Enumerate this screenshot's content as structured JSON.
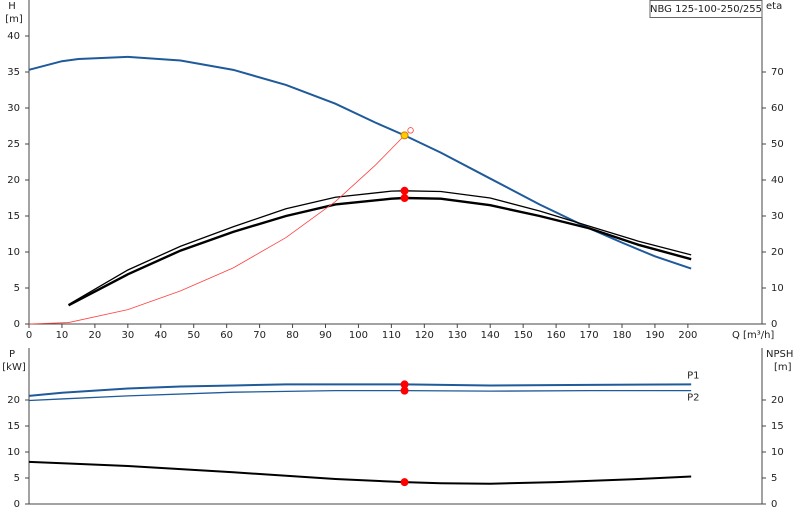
{
  "chart_data": [
    {
      "type": "line",
      "title": "NBG 125-100-250/255",
      "ylabel": "H",
      "yunit": "[m]",
      "y2label": "eta",
      "xlabel": "Q [m³/h]",
      "xlim": [
        0,
        222.5
      ],
      "xticks": [
        0,
        10,
        20,
        30,
        40,
        50,
        60,
        70,
        80,
        90,
        100,
        110,
        120,
        130,
        140,
        150,
        160,
        170,
        180,
        190,
        200
      ],
      "ylim": [
        0,
        45
      ],
      "yticks": [
        0,
        5,
        10,
        15,
        20,
        25,
        30,
        35,
        40
      ],
      "y2lim": [
        0,
        90
      ],
      "y2ticks": [
        0,
        10,
        20,
        30,
        40,
        50,
        60,
        70
      ],
      "series": [
        {
          "color": "#1f5a9a",
          "width": 2,
          "x": [
            0,
            10,
            15,
            30,
            46,
            62,
            78,
            93,
            105,
            114,
            125,
            140,
            155,
            160,
            170,
            180,
            190,
            201
          ],
          "values": [
            35.3,
            36.5,
            36.8,
            37.1,
            36.6,
            35.3,
            33.2,
            30.6,
            28,
            26.2,
            23.8,
            20.2,
            16.6,
            15.5,
            13.3,
            11.3,
            9.4,
            7.7
          ]
        },
        {
          "color": "#000000",
          "width": 1.3,
          "axis": "y2",
          "x": [
            12,
            30,
            46,
            62,
            78,
            93,
            110,
            114,
            125,
            140,
            155,
            170,
            185,
            201
          ],
          "values": [
            5.4,
            15,
            21.6,
            27,
            32,
            35.2,
            36.9,
            37,
            36.8,
            35,
            31.4,
            27.2,
            23,
            19.2
          ]
        },
        {
          "color": "#000000",
          "width": 2.4,
          "axis": "y2",
          "x": [
            12,
            30,
            46,
            62,
            78,
            93,
            110,
            114,
            125,
            140,
            155,
            170,
            185,
            201
          ],
          "values": [
            5.2,
            13.8,
            20.4,
            25.6,
            30,
            33.2,
            34.8,
            35,
            34.8,
            33,
            30,
            26.6,
            22,
            18
          ]
        },
        {
          "color": "#ff4040",
          "width": 0.8,
          "x": [
            0,
            12,
            30,
            46,
            62,
            78,
            93,
            105,
            114
          ],
          "values": [
            0,
            0.2,
            2,
            4.6,
            7.8,
            12,
            17,
            22,
            26.2
          ]
        }
      ],
      "markers": [
        {
          "x": 114,
          "y": 26.2,
          "color": "#ffcc00"
        },
        {
          "x": 114,
          "y": 37,
          "color": "#ff0000",
          "axis": "y2"
        },
        {
          "x": 114,
          "y": 35,
          "color": "#ff0000",
          "axis": "y2"
        }
      ]
    },
    {
      "type": "line",
      "ylabel": "P",
      "yunit": "[kW]",
      "y2label": "NPSH",
      "y2unit": "[m]",
      "xlim": [
        0,
        222.5
      ],
      "ylim": [
        0,
        30
      ],
      "yticks": [
        0,
        5,
        10,
        15,
        20
      ],
      "y2lim": [
        0,
        30
      ],
      "y2ticks": [
        0,
        5,
        10,
        15,
        20
      ],
      "series": [
        {
          "name": "P1",
          "color": "#1f5a9a",
          "width": 2,
          "x": [
            0,
            10,
            30,
            46,
            62,
            78,
            114,
            140,
            170,
            201
          ],
          "values": [
            20.8,
            21.4,
            22.2,
            22.6,
            22.8,
            23,
            23,
            22.8,
            22.9,
            23
          ]
        },
        {
          "name": "P2",
          "color": "#1f5a9a",
          "width": 1.3,
          "x": [
            0,
            10,
            30,
            62,
            93,
            114,
            140,
            170,
            201
          ],
          "values": [
            19.9,
            20.2,
            20.8,
            21.5,
            21.8,
            21.8,
            21.7,
            21.8,
            21.8
          ]
        },
        {
          "color": "#000000",
          "width": 2,
          "axis": "y2",
          "x": [
            0,
            12,
            30,
            62,
            93,
            114,
            125,
            140,
            160,
            185,
            201
          ],
          "values": [
            8.1,
            7.8,
            7.3,
            6.1,
            4.8,
            4.2,
            4,
            3.9,
            4.2,
            4.8,
            5.3
          ]
        }
      ],
      "markers": [
        {
          "x": 114,
          "y": 23,
          "color": "#ff0000"
        },
        {
          "x": 114,
          "y": 21.8,
          "color": "#ff0000"
        },
        {
          "x": 114,
          "y": 4.2,
          "color": "#ff0000",
          "axis": "y2"
        }
      ]
    }
  ]
}
